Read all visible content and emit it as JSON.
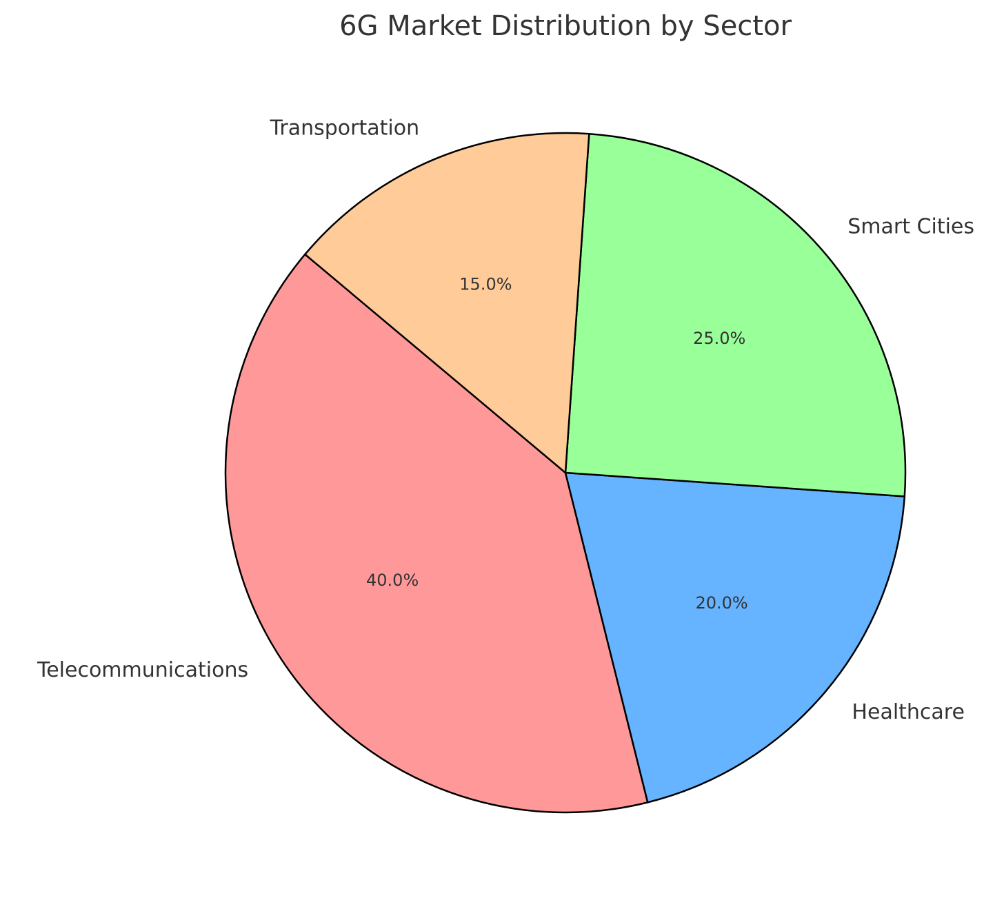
{
  "chart_data": {
    "type": "pie",
    "title": "6G Market Distribution by Sector",
    "categories": [
      "Telecommunications",
      "Healthcare",
      "Smart Cities",
      "Transportation"
    ],
    "values": [
      40,
      20,
      25,
      15
    ],
    "value_labels": [
      "40.0%",
      "20.0%",
      "25.0%",
      "15.0%"
    ],
    "colors": [
      "#ff9999",
      "#66b3ff",
      "#99ff99",
      "#ffcc99"
    ]
  }
}
